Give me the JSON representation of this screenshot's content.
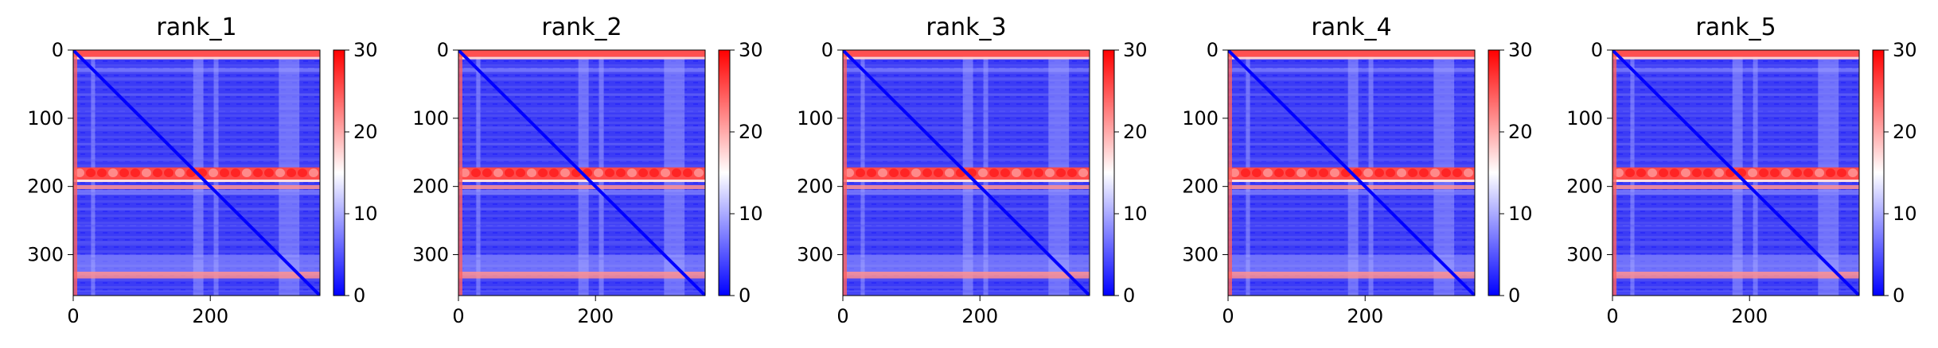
{
  "chart_data": [
    {
      "type": "heatmap",
      "title": "rank_1",
      "n": 360,
      "xticks": [
        0,
        200
      ],
      "yticks": [
        0,
        100,
        200,
        300
      ],
      "xlim": [
        0,
        360
      ],
      "ylim": [
        360,
        0
      ],
      "colorbar": {
        "range": [
          0,
          30
        ],
        "ticks": [
          0,
          10,
          20,
          30
        ],
        "colormap": "bwr",
        "colors": [
          "#0000ff",
          "#ffffff",
          "#ff0000"
        ]
      },
      "high_error_bands": [
        [
          0,
          10
        ],
        [
          172,
          190
        ],
        [
          198,
          204
        ],
        [
          325,
          335
        ]
      ],
      "light_stripes": [
        [
          26,
          32
        ],
        [
          175,
          190
        ],
        [
          205,
          212
        ],
        [
          300,
          330
        ]
      ],
      "diagonal": "low (blue)"
    },
    {
      "type": "heatmap",
      "title": "rank_2",
      "n": 360,
      "xticks": [
        0,
        200
      ],
      "yticks": [
        0,
        100,
        200,
        300
      ],
      "xlim": [
        0,
        360
      ],
      "ylim": [
        360,
        0
      ],
      "colorbar": {
        "range": [
          0,
          30
        ],
        "ticks": [
          0,
          10,
          20,
          30
        ],
        "colormap": "bwr",
        "colors": [
          "#0000ff",
          "#ffffff",
          "#ff0000"
        ]
      },
      "high_error_bands": [
        [
          0,
          10
        ],
        [
          172,
          190
        ],
        [
          198,
          204
        ],
        [
          325,
          335
        ]
      ],
      "light_stripes": [
        [
          26,
          32
        ],
        [
          175,
          190
        ],
        [
          205,
          212
        ],
        [
          300,
          330
        ]
      ],
      "diagonal": "low (blue)"
    },
    {
      "type": "heatmap",
      "title": "rank_3",
      "n": 360,
      "xticks": [
        0,
        200
      ],
      "yticks": [
        0,
        100,
        200,
        300
      ],
      "xlim": [
        0,
        360
      ],
      "ylim": [
        360,
        0
      ],
      "colorbar": {
        "range": [
          0,
          30
        ],
        "ticks": [
          0,
          10,
          20,
          30
        ],
        "colormap": "bwr",
        "colors": [
          "#0000ff",
          "#ffffff",
          "#ff0000"
        ]
      },
      "high_error_bands": [
        [
          0,
          10
        ],
        [
          172,
          190
        ],
        [
          198,
          204
        ],
        [
          325,
          335
        ]
      ],
      "light_stripes": [
        [
          26,
          32
        ],
        [
          175,
          190
        ],
        [
          205,
          212
        ],
        [
          300,
          330
        ]
      ],
      "diagonal": "low (blue)"
    },
    {
      "type": "heatmap",
      "title": "rank_4",
      "n": 360,
      "xticks": [
        0,
        200
      ],
      "yticks": [
        0,
        100,
        200,
        300
      ],
      "xlim": [
        0,
        360
      ],
      "ylim": [
        360,
        0
      ],
      "colorbar": {
        "range": [
          0,
          30
        ],
        "ticks": [
          0,
          10,
          20,
          30
        ],
        "colormap": "bwr",
        "colors": [
          "#0000ff",
          "#ffffff",
          "#ff0000"
        ]
      },
      "high_error_bands": [
        [
          0,
          10
        ],
        [
          172,
          190
        ],
        [
          198,
          204
        ],
        [
          325,
          335
        ]
      ],
      "light_stripes": [
        [
          26,
          32
        ],
        [
          175,
          190
        ],
        [
          205,
          212
        ],
        [
          300,
          330
        ]
      ],
      "diagonal": "low (blue)"
    },
    {
      "type": "heatmap",
      "title": "rank_5",
      "n": 360,
      "xticks": [
        0,
        200
      ],
      "yticks": [
        0,
        100,
        200,
        300
      ],
      "xlim": [
        0,
        360
      ],
      "ylim": [
        360,
        0
      ],
      "colorbar": {
        "range": [
          0,
          30
        ],
        "ticks": [
          0,
          10,
          20,
          30
        ],
        "colormap": "bwr",
        "colors": [
          "#0000ff",
          "#ffffff",
          "#ff0000"
        ]
      },
      "high_error_bands": [
        [
          0,
          10
        ],
        [
          172,
          190
        ],
        [
          198,
          204
        ],
        [
          325,
          335
        ]
      ],
      "light_stripes": [
        [
          26,
          32
        ],
        [
          175,
          190
        ],
        [
          205,
          212
        ],
        [
          300,
          330
        ]
      ],
      "diagonal": "low (blue)"
    }
  ]
}
